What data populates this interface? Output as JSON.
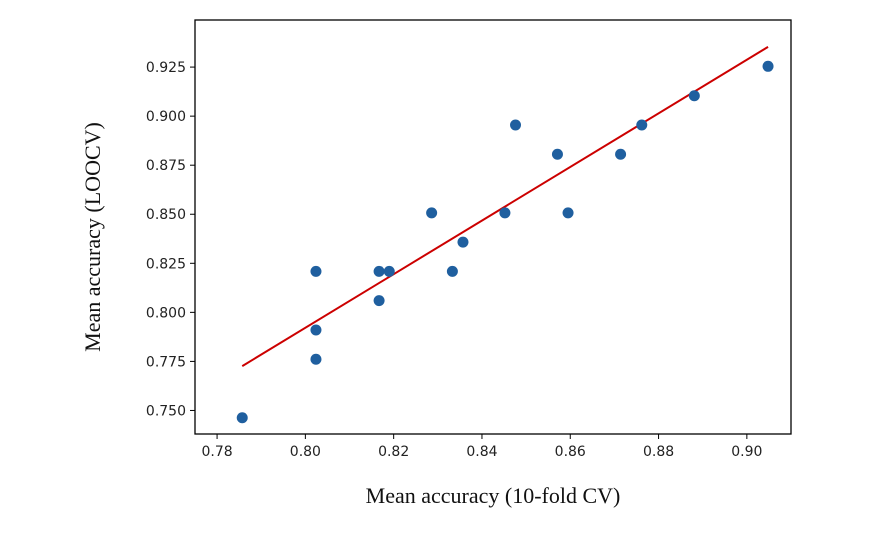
{
  "chart_data": {
    "type": "scatter",
    "xlabel": "Mean accuracy (10-fold CV)",
    "ylabel": "Mean accuracy (LOOCV)",
    "xlim": [
      0.775,
      0.91
    ],
    "ylim": [
      0.738,
      0.949
    ],
    "xticks": [
      "0.78",
      "0.80",
      "0.82",
      "0.84",
      "0.86",
      "0.88",
      "0.90"
    ],
    "yticks": [
      "0.750",
      "0.775",
      "0.800",
      "0.825",
      "0.850",
      "0.875",
      "0.900",
      "0.925"
    ],
    "grid": false,
    "point_color": "#1f5f9f",
    "fit_line_color": "#cc0000",
    "series": [
      {
        "points": [
          {
            "x": 0.7857,
            "y": 0.7463
          },
          {
            "x": 0.8024,
            "y": 0.7761
          },
          {
            "x": 0.8024,
            "y": 0.791
          },
          {
            "x": 0.8024,
            "y": 0.8209
          },
          {
            "x": 0.8167,
            "y": 0.806
          },
          {
            "x": 0.8167,
            "y": 0.8209
          },
          {
            "x": 0.819,
            "y": 0.8209
          },
          {
            "x": 0.8286,
            "y": 0.8507
          },
          {
            "x": 0.8333,
            "y": 0.8209
          },
          {
            "x": 0.8357,
            "y": 0.8358
          },
          {
            "x": 0.8452,
            "y": 0.8507
          },
          {
            "x": 0.8476,
            "y": 0.8955
          },
          {
            "x": 0.8571,
            "y": 0.8806
          },
          {
            "x": 0.8595,
            "y": 0.8507
          },
          {
            "x": 0.8714,
            "y": 0.8806
          },
          {
            "x": 0.8762,
            "y": 0.8955
          },
          {
            "x": 0.8881,
            "y": 0.9104
          },
          {
            "x": 0.9048,
            "y": 0.9254
          }
        ]
      }
    ],
    "fit_line": {
      "x": [
        0.7857,
        0.9048
      ],
      "y": [
        0.7726,
        0.9353
      ]
    }
  }
}
